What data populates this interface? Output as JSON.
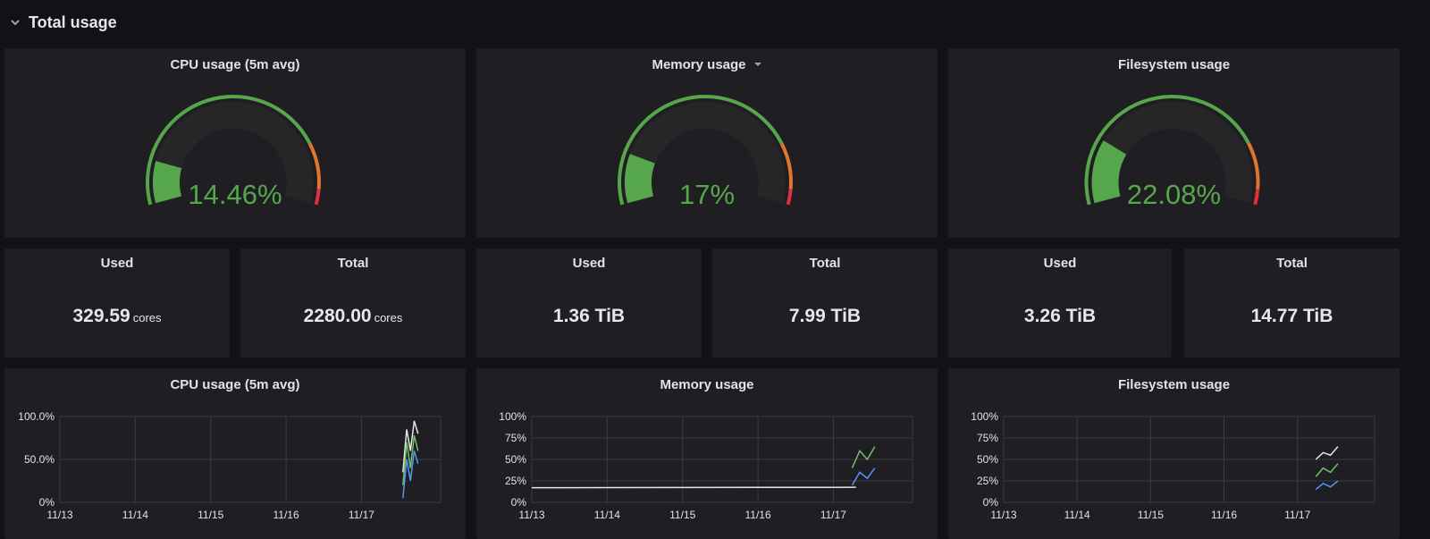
{
  "row": {
    "title": "Total usage",
    "chevron_icon": "chevron-down-icon"
  },
  "gauges": [
    {
      "title": "CPU usage (5m avg)",
      "value_text": "14.46%",
      "fraction": 0.1446,
      "has_menu": false
    },
    {
      "title": "Memory usage",
      "value_text": "17%",
      "fraction": 0.17,
      "has_menu": true
    },
    {
      "title": "Filesystem usage",
      "value_text": "22.08%",
      "fraction": 0.2208,
      "has_menu": false
    }
  ],
  "stats": [
    {
      "label": "Used",
      "value": "329.59",
      "unit": "cores"
    },
    {
      "label": "Total",
      "value": "2280.00",
      "unit": "cores"
    },
    {
      "label": "Used",
      "value": "1.36 TiB",
      "unit": ""
    },
    {
      "label": "Total",
      "value": "7.99 TiB",
      "unit": ""
    },
    {
      "label": "Used",
      "value": "3.26 TiB",
      "unit": ""
    },
    {
      "label": "Total",
      "value": "14.77 TiB",
      "unit": ""
    }
  ],
  "colors": {
    "ok": "#56a64b",
    "warn": "#e0752d",
    "crit": "#e02f44",
    "panel": "#1f1f23",
    "bg": "#111217"
  },
  "chart_data": [
    {
      "type": "line",
      "title": "CPU usage (5m avg)",
      "x": [
        "11/13",
        "11/14",
        "11/15",
        "11/16",
        "11/17"
      ],
      "y_ticks": [
        "0%",
        "50.0%",
        "100.0%"
      ],
      "ylim": [
        0,
        100
      ],
      "series": [
        {
          "x": [
            4.55,
            4.6,
            4.65,
            4.7,
            4.75
          ],
          "values": [
            35,
            85,
            60,
            95,
            80
          ]
        },
        {
          "x": [
            4.55,
            4.6,
            4.65,
            4.7,
            4.75
          ],
          "values": [
            20,
            70,
            40,
            78,
            60
          ]
        },
        {
          "x": [
            4.55,
            4.6,
            4.65,
            4.7,
            4.75
          ],
          "values": [
            5,
            50,
            25,
            60,
            45
          ]
        }
      ]
    },
    {
      "type": "line",
      "title": "Memory usage",
      "x": [
        "11/13",
        "11/14",
        "11/15",
        "11/16",
        "11/17"
      ],
      "y_ticks": [
        "0%",
        "25%",
        "50%",
        "75%",
        "100%"
      ],
      "ylim": [
        0,
        100
      ],
      "series": [
        {
          "x": [
            0,
            1,
            2,
            3,
            4,
            4.3
          ],
          "values": [
            17,
            17.2,
            17.3,
            17.4,
            17.5,
            17.6
          ]
        },
        {
          "x": [
            4.25,
            4.35,
            4.45,
            4.55
          ],
          "values": [
            40,
            60,
            50,
            65
          ]
        },
        {
          "x": [
            4.25,
            4.35,
            4.45,
            4.55
          ],
          "values": [
            20,
            35,
            28,
            40
          ]
        }
      ]
    },
    {
      "type": "line",
      "title": "Filesystem usage",
      "x": [
        "11/13",
        "11/14",
        "11/15",
        "11/16",
        "11/17"
      ],
      "y_ticks": [
        "0%",
        "25%",
        "50%",
        "75%",
        "100%"
      ],
      "ylim": [
        0,
        100
      ],
      "series": [
        {
          "x": [
            4.25,
            4.35,
            4.45,
            4.55
          ],
          "values": [
            50,
            58,
            55,
            65
          ]
        },
        {
          "x": [
            4.25,
            4.35,
            4.45,
            4.55
          ],
          "values": [
            30,
            40,
            35,
            45
          ]
        },
        {
          "x": [
            4.25,
            4.35,
            4.45,
            4.55
          ],
          "values": [
            15,
            22,
            18,
            25
          ]
        }
      ]
    }
  ]
}
